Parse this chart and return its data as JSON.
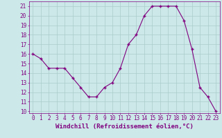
{
  "hours": [
    0,
    1,
    2,
    3,
    4,
    5,
    6,
    7,
    8,
    9,
    10,
    11,
    12,
    13,
    14,
    15,
    16,
    17,
    18,
    19,
    20,
    21,
    22,
    23
  ],
  "values": [
    16,
    15.5,
    14.5,
    14.5,
    14.5,
    13.5,
    12.5,
    11.5,
    11.5,
    12.5,
    13,
    14.5,
    17,
    18,
    20,
    21,
    21,
    21,
    21,
    19.5,
    16.5,
    12.5,
    11.5,
    10
  ],
  "line_color": "#800080",
  "marker": "+",
  "bg_color": "#cce8e8",
  "grid_color": "#aacccc",
  "xlabel": "Windchill (Refroidissement éolien,°C)",
  "xlabel_color": "#800080",
  "ylim": [
    9.8,
    21.5
  ],
  "xlim": [
    -0.5,
    23.5
  ],
  "yticks": [
    10,
    11,
    12,
    13,
    14,
    15,
    16,
    17,
    18,
    19,
    20,
    21
  ],
  "xticks": [
    0,
    1,
    2,
    3,
    4,
    5,
    6,
    7,
    8,
    9,
    10,
    11,
    12,
    13,
    14,
    15,
    16,
    17,
    18,
    19,
    20,
    21,
    22,
    23
  ],
  "tick_color": "#800080",
  "axis_label_fontsize": 6.5,
  "tick_fontsize": 5.5,
  "linewidth": 0.8,
  "markersize": 3,
  "markeredgewidth": 1.0
}
